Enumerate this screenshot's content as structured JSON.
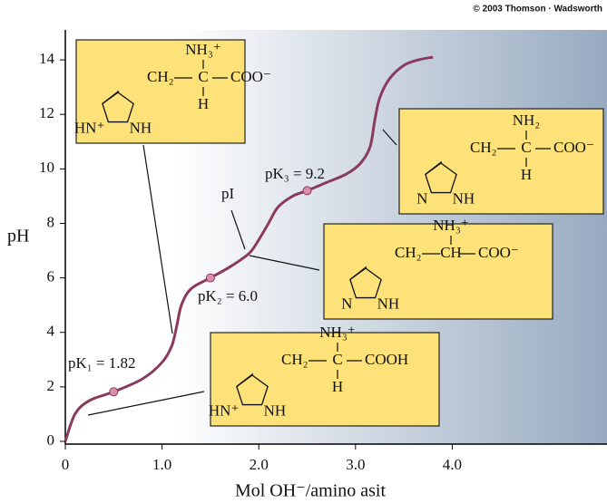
{
  "chart_data": {
    "type": "line",
    "credit": "© 2003 Thomson · Wadsworth",
    "xlabel": "Mol OH⁻/amino asit",
    "ylabel": "pH",
    "xlim": [
      0,
      5.6
    ],
    "ylim": [
      0,
      15.1
    ],
    "xticks": [
      0,
      {
        "value": 1,
        "label": "1.0"
      },
      {
        "value": 2,
        "label": "2.0"
      },
      {
        "value": 3,
        "label": "3.0"
      },
      {
        "value": 4,
        "label": "4.0"
      }
    ],
    "yticks": [
      0,
      2,
      4,
      6,
      8,
      10,
      12,
      14
    ],
    "series": [
      {
        "color": "#8a3a5c",
        "x": [
          0,
          0.1,
          0.25,
          0.5,
          0.8,
          1.0,
          1.1,
          1.15,
          1.2,
          1.3,
          1.5,
          1.7,
          1.9,
          2.0,
          2.1,
          2.2,
          2.35,
          2.5,
          2.7,
          2.9,
          3.05,
          3.15,
          3.2,
          3.25,
          3.35,
          3.5,
          3.65,
          3.8
        ],
        "values": [
          0,
          1.0,
          1.5,
          1.82,
          2.3,
          2.9,
          3.5,
          4.2,
          5.0,
          5.6,
          6.0,
          6.4,
          6.9,
          7.4,
          8.0,
          8.6,
          9.0,
          9.2,
          9.5,
          9.8,
          10.2,
          10.8,
          11.8,
          12.6,
          13.3,
          13.8,
          14.0,
          14.1
        ]
      }
    ],
    "points": {
      "color": "#d98fa8",
      "x": [
        0.5,
        1.5,
        2.5
      ],
      "y": [
        1.82,
        6.0,
        9.2
      ]
    },
    "annotations": [
      "pK₁ = 1.82",
      "pK₂ = 6.0",
      "pK₃ = 9.2",
      "pI"
    ],
    "structures": [
      {
        "amine": "NH₃⁺",
        "chain": [
          "CH₂",
          "C",
          "COO⁻"
        ],
        "h": "H",
        "ring_n": "HN⁺",
        "ring_nh": "NH"
      },
      {
        "amine": "NH₂",
        "chain": [
          "CH₂",
          "C",
          "COO⁻"
        ],
        "h": "H",
        "ring_n": "N",
        "ring_nh": "NH"
      },
      {
        "amine": "NH₃⁺",
        "chain": [
          "CH₂",
          "CH",
          "COO⁻"
        ],
        "ring_n": "N",
        "ring_nh": "NH"
      },
      {
        "amine": "NH₃⁺",
        "chain": [
          "CH₂",
          "C",
          "COOH"
        ],
        "h": "H",
        "ring_n": "HN⁺",
        "ring_nh": "NH"
      }
    ]
  }
}
